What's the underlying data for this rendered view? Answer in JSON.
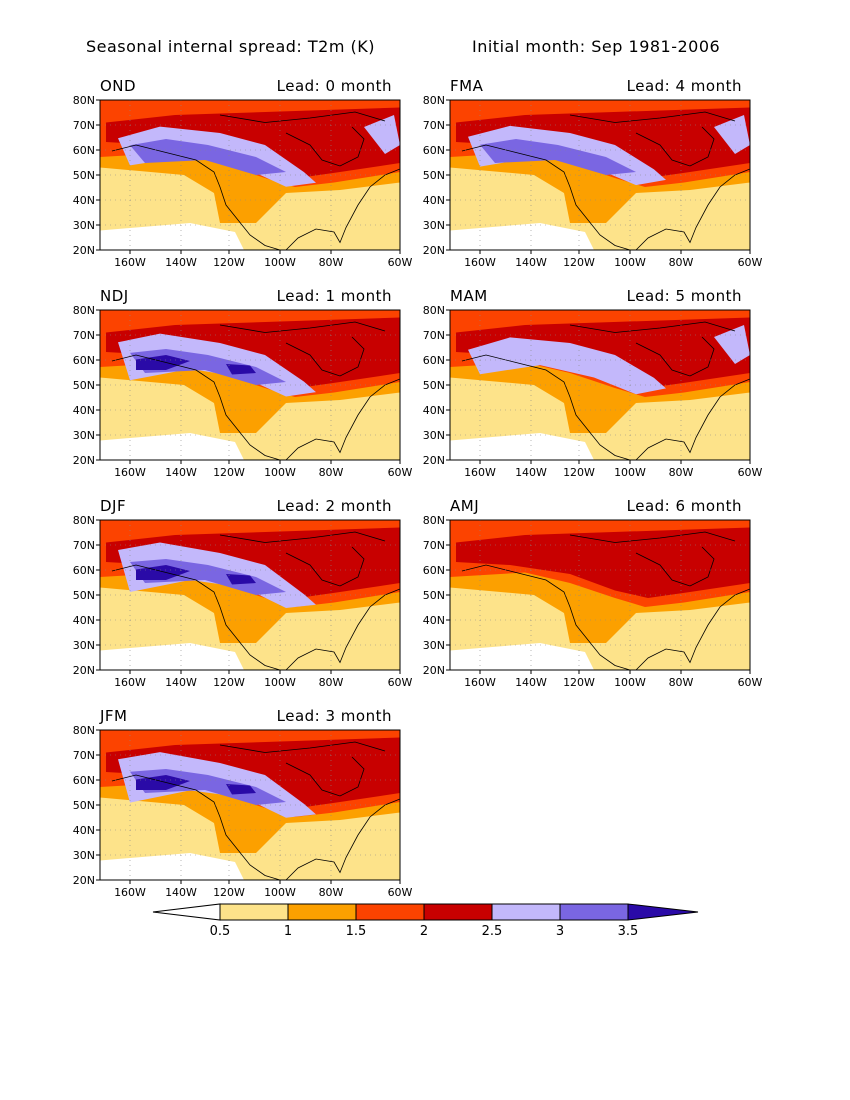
{
  "figure": {
    "title_left": "Seasonal internal spread: T2m (K)",
    "title_right": "Initial month: Sep 1981-2006"
  },
  "colors": {
    "lt05": "#ffffff",
    "b05_1": "#fde38a",
    "b1_15": "#fca000",
    "b15_2": "#fc4300",
    "b2_25": "#c80000",
    "b25_3": "#c3b8fb",
    "b3_35": "#7a66e2",
    "gt35": "#2a0aa7"
  },
  "axes": {
    "lon_ticks": [
      "160W",
      "140W",
      "120W",
      "100W",
      "80W",
      "60W"
    ],
    "lat_ticks": [
      "20N",
      "30N",
      "40N",
      "50N",
      "60N",
      "70N",
      "80N"
    ]
  },
  "panels": [
    {
      "season": "OND",
      "lead": "Lead: 0 month",
      "spread": [
        0.45,
        0.62,
        0.45,
        0.1
      ]
    },
    {
      "season": "FMA",
      "lead": "Lead: 4 month",
      "spread": [
        0.55,
        0.25,
        0.5,
        0.05
      ]
    },
    {
      "season": "NDJ",
      "lead": "Lead: 1 month",
      "spread": [
        0.85,
        0.55,
        0.3,
        0.08
      ]
    },
    {
      "season": "MAM",
      "lead": "Lead: 5 month",
      "spread": [
        0.35,
        0.05,
        0.55,
        0.08
      ]
    },
    {
      "season": "DJF",
      "lead": "Lead: 2 month",
      "spread": [
        1.0,
        0.9,
        0.3,
        0.08
      ]
    },
    {
      "season": "AMJ",
      "lead": "Lead: 6 month",
      "spread": [
        0.0,
        0.0,
        0.0,
        0.0
      ]
    },
    {
      "season": "JFM",
      "lead": "Lead: 3 month",
      "spread": [
        1.05,
        0.85,
        0.3,
        0.06
      ]
    }
  ],
  "colorbar": {
    "labels": [
      "0.5",
      "1",
      "1.5",
      "2",
      "2.5",
      "3",
      "3.5"
    ]
  }
}
